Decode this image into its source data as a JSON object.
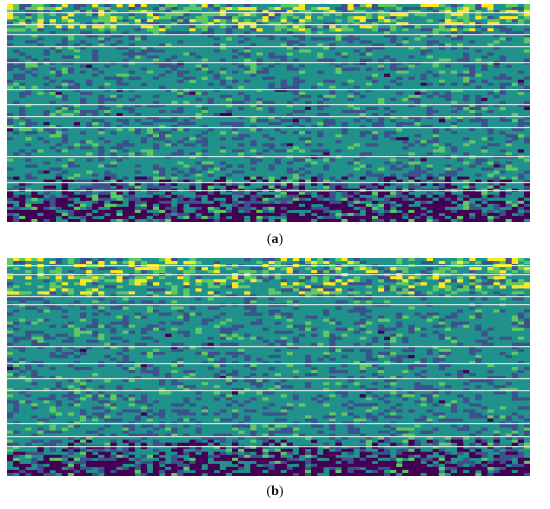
{
  "chart_data": [
    {
      "type": "heatmap",
      "panel_label": "a",
      "caption": "(a)",
      "grid": false,
      "colormap": [
        "#440154",
        "#3b528b",
        "#21918c",
        "#5ec962",
        "#fde725"
      ]
    },
    {
      "type": "heatmap",
      "panel_label": "b",
      "caption": "(b)",
      "grid": false,
      "colormap": [
        "#440154",
        "#3b528b",
        "#21918c",
        "#5ec962",
        "#fde725"
      ]
    }
  ],
  "figure": {
    "caption_a_open": "(",
    "caption_a_letter": "a",
    "caption_a_close": ")",
    "caption_b_open": "(",
    "caption_b_letter": "b",
    "caption_b_close": ")"
  }
}
